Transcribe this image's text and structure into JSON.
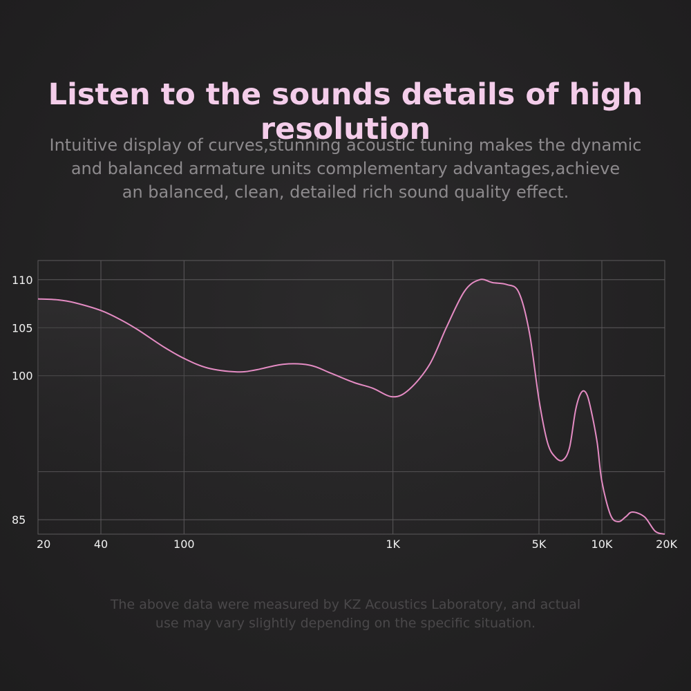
{
  "header": {
    "title": "Listen to the sounds details of high resolution",
    "subtitle_lines": [
      "Intuitive display of curves,stunning acoustic tuning makes the dynamic",
      "and balanced armature units complementary advantages,achieve",
      "an balanced, clean, detailed rich sound quality effect."
    ]
  },
  "footnote_lines": [
    "The above data were measured by KZ Acoustics Laboratory, and actual",
    "use may vary slightly depending on the specific situation."
  ],
  "colors": {
    "curve": "#e58cc4",
    "title": "#f4cdea",
    "grid": "#5c5a5c",
    "tick_text": "#f2f2f2"
  },
  "chart_data": {
    "type": "line",
    "title": "",
    "xlabel": "",
    "ylabel": "",
    "xscale": "log",
    "xlim": [
      20,
      20000
    ],
    "ylim": [
      83.5,
      112
    ],
    "grid": true,
    "x_ticks": [
      {
        "value": 20,
        "label": "20"
      },
      {
        "value": 40,
        "label": "40"
      },
      {
        "value": 100,
        "label": "100"
      },
      {
        "value": 1000,
        "label": "1K"
      },
      {
        "value": 5000,
        "label": "5K"
      },
      {
        "value": 10000,
        "label": "10K"
      },
      {
        "value": 20000,
        "label": "20K"
      }
    ],
    "y_ticks": [
      {
        "value": 110,
        "label": "110"
      },
      {
        "value": 105,
        "label": "105"
      },
      {
        "value": 100,
        "label": "100"
      },
      {
        "value": 90,
        "label": ""
      },
      {
        "value": 85,
        "label": "85"
      }
    ],
    "series": [
      {
        "x": [
          20,
          25,
          30,
          40,
          50,
          60,
          80,
          100,
          130,
          180,
          220,
          300,
          400,
          500,
          650,
          800,
          1000,
          1200,
          1500,
          1800,
          2200,
          2600,
          3000,
          3500,
          4000,
          4500,
          5000,
          5500,
          6000,
          6500,
          7000,
          7500,
          8000,
          8500,
          9000,
          9500,
          10000,
          11000,
          12000,
          13000,
          14000,
          16000,
          18000,
          20000
        ],
        "y": [
          108.0,
          107.9,
          107.6,
          106.8,
          105.8,
          104.8,
          103.0,
          101.8,
          100.8,
          100.4,
          100.6,
          101.2,
          101.1,
          100.3,
          99.3,
          98.7,
          97.8,
          98.6,
          101.2,
          105.0,
          108.8,
          110.0,
          109.7,
          109.5,
          108.7,
          104.5,
          97.5,
          93.0,
          91.5,
          91.2,
          92.5,
          96.5,
          98.3,
          98.0,
          95.8,
          93.0,
          89.0,
          85.5,
          84.8,
          85.3,
          85.8,
          85.3,
          83.8,
          83.5
        ]
      }
    ]
  }
}
